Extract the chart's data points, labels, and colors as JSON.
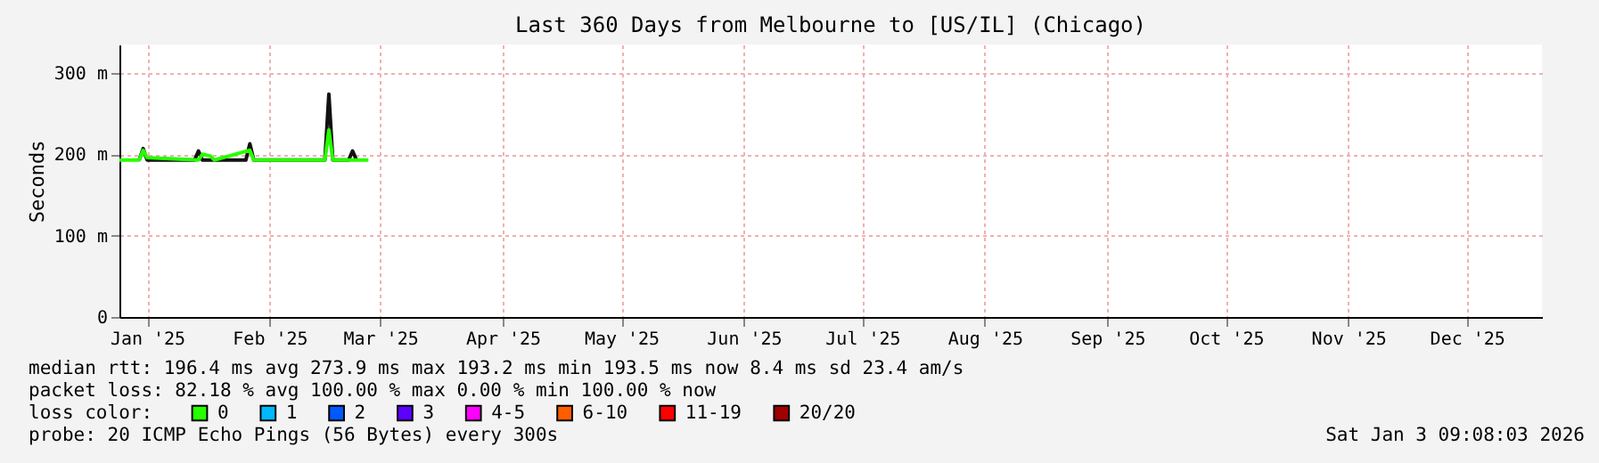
{
  "chart_data": {
    "type": "line",
    "title": "Last 360 Days from Melbourne to [US/IL] (Chicago)",
    "ylabel": "Seconds",
    "xlim": [
      "2025-01-08",
      "2026-01-03"
    ],
    "xticks": [
      {
        "value": "2025-01-15",
        "label": "Jan '25"
      },
      {
        "value": "2025-02-15",
        "label": "Feb '25"
      },
      {
        "value": "2025-03-15",
        "label": "Mar '25"
      },
      {
        "value": "2025-04-15",
        "label": "Apr '25"
      },
      {
        "value": "2025-05-15",
        "label": "May '25"
      },
      {
        "value": "2025-06-15",
        "label": "Jun '25"
      },
      {
        "value": "2025-07-15",
        "label": "Jul '25"
      },
      {
        "value": "2025-08-15",
        "label": "Aug '25"
      },
      {
        "value": "2025-09-15",
        "label": "Sep '25"
      },
      {
        "value": "2025-10-15",
        "label": "Oct '25"
      },
      {
        "value": "2025-11-15",
        "label": "Nov '25"
      },
      {
        "value": "2025-12-15",
        "label": "Dec '25"
      }
    ],
    "ylim": [
      0,
      335
    ],
    "yticks": [
      0,
      {
        "value": 100,
        "label": "100 m"
      },
      {
        "value": 200,
        "label": "200 m"
      },
      {
        "value": 300,
        "label": "300 m"
      }
    ],
    "grid": true,
    "legend": "bottom",
    "legend_title": "loss color:",
    "line_style": "solid",
    "marker": "none",
    "series": [
      {
        "color": "#111111",
        "x": [
          "2025-01-13",
          "2025-01-14",
          "2025-01-15",
          "2025-01-27",
          "2025-01-28",
          "2025-01-29",
          "2025-02-09",
          "2025-02-10",
          "2025-02-11",
          "2025-03-01",
          "2025-03-02",
          "2025-03-03",
          "2025-03-07",
          "2025-03-08",
          "2025-03-09"
        ],
        "values": [
          193,
          207,
          193,
          193,
          204,
          193,
          193,
          213,
          193,
          193,
          274,
          193,
          193,
          204,
          193
        ]
      },
      {
        "name": "0",
        "color": "#26ff00",
        "x": [
          "2025-01-08",
          "2025-01-13",
          "2025-01-14",
          "2025-01-15",
          "2025-01-28",
          "2025-01-29",
          "2025-01-31",
          "2025-02-01",
          "2025-02-10",
          "2025-02-11",
          "2025-03-01",
          "2025-03-02",
          "2025-03-03",
          "2025-03-12"
        ],
        "values": [
          193,
          193,
          205,
          196,
          193,
          200,
          198,
          193,
          205,
          193,
          193,
          230,
          193,
          193
        ]
      },
      {
        "name": "1",
        "color": "#00b8ff"
      },
      {
        "name": "2",
        "color": "#0059ff"
      },
      {
        "name": "3",
        "color": "#5e00ff"
      },
      {
        "name": "4-5",
        "color": "#ff00ff"
      },
      {
        "name": "6-10",
        "color": "#ff5e00"
      },
      {
        "name": "11-19",
        "color": "#ff0000"
      },
      {
        "name": "20/20",
        "color": "#a10000"
      }
    ],
    "annotations": [
      "median rtt: 196.4 ms avg 273.9 ms max 193.2 ms min 193.5 ms now 8.4 ms sd 23.4 am/s",
      "packet loss: 82.18 % avg 100.00 % max 0.00 % min 100.00 % now",
      "probe: 20 ICMP Echo Pings (56 Bytes) every 300s",
      "Sat Jan 3 09:08:03 2026"
    ]
  }
}
